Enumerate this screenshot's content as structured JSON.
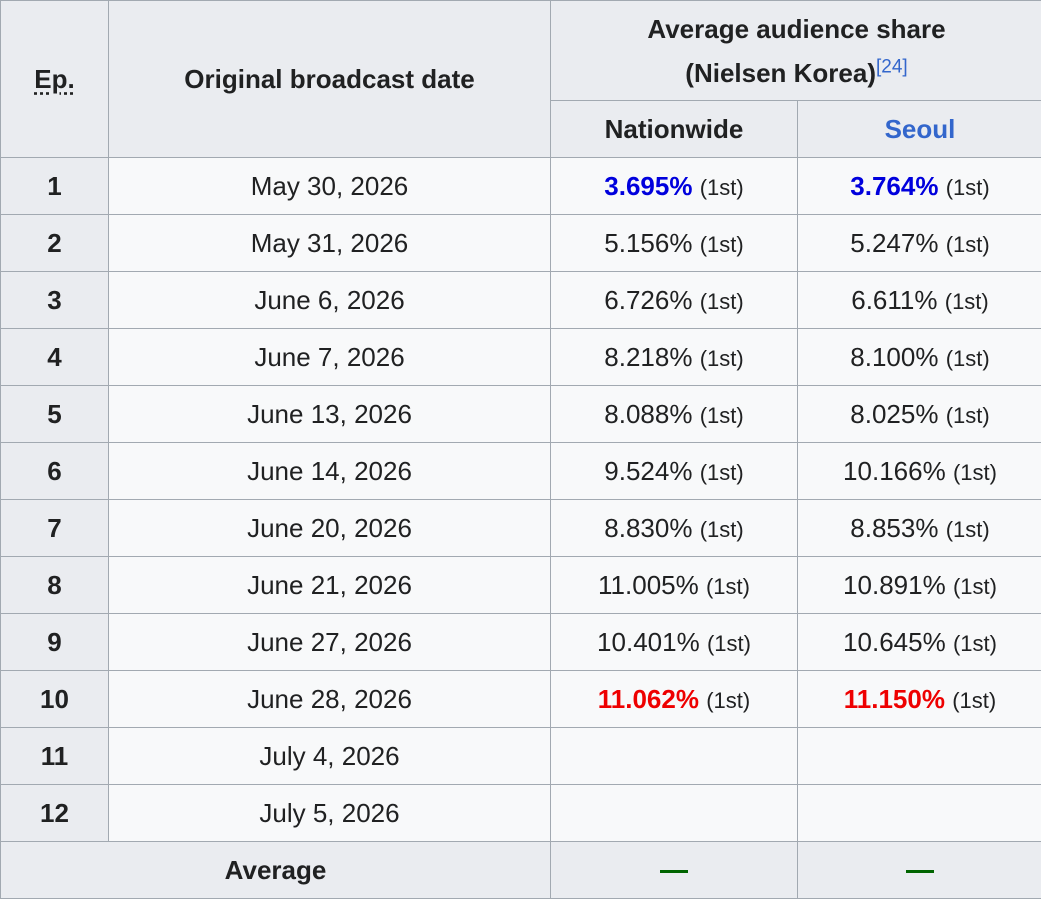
{
  "header": {
    "ep_label": "Ep.",
    "date_label": "Original broadcast date",
    "share_label_line1": "Average audience share",
    "share_label_line2": "(Nielsen Korea)",
    "share_ref": "[24]",
    "nationwide_label": "Nationwide",
    "seoul_label": "Seoul"
  },
  "rows": [
    {
      "ep": "1",
      "date": "May 30, 2026",
      "nationwide": "3.695%",
      "nationwide_rank": "(1st)",
      "seoul": "3.764%",
      "seoul_rank": "(1st)"
    },
    {
      "ep": "2",
      "date": "May 31, 2026",
      "nationwide": "5.156%",
      "nationwide_rank": "(1st)",
      "seoul": "5.247%",
      "seoul_rank": "(1st)"
    },
    {
      "ep": "3",
      "date": "June 6, 2026",
      "nationwide": "6.726%",
      "nationwide_rank": "(1st)",
      "seoul": "6.611%",
      "seoul_rank": "(1st)"
    },
    {
      "ep": "4",
      "date": "June 7, 2026",
      "nationwide": "8.218%",
      "nationwide_rank": "(1st)",
      "seoul": "8.100%",
      "seoul_rank": "(1st)"
    },
    {
      "ep": "5",
      "date": "June 13, 2026",
      "nationwide": "8.088%",
      "nationwide_rank": "(1st)",
      "seoul": "8.025%",
      "seoul_rank": "(1st)"
    },
    {
      "ep": "6",
      "date": "June 14, 2026",
      "nationwide": "9.524%",
      "nationwide_rank": "(1st)",
      "seoul": "10.166%",
      "seoul_rank": "(1st)"
    },
    {
      "ep": "7",
      "date": "June 20, 2026",
      "nationwide": "8.830%",
      "nationwide_rank": "(1st)",
      "seoul": "8.853%",
      "seoul_rank": "(1st)"
    },
    {
      "ep": "8",
      "date": "June 21, 2026",
      "nationwide": "11.005%",
      "nationwide_rank": "(1st)",
      "seoul": "10.891%",
      "seoul_rank": "(1st)"
    },
    {
      "ep": "9",
      "date": "June 27, 2026",
      "nationwide": "10.401%",
      "nationwide_rank": "(1st)",
      "seoul": "10.645%",
      "seoul_rank": "(1st)"
    },
    {
      "ep": "10",
      "date": "June 28, 2026",
      "nationwide": "11.062%",
      "nationwide_rank": "(1st)",
      "seoul": "11.150%",
      "seoul_rank": "(1st)"
    },
    {
      "ep": "11",
      "date": "July 4, 2026",
      "nationwide": "",
      "nationwide_rank": "",
      "seoul": "",
      "seoul_rank": ""
    },
    {
      "ep": "12",
      "date": "July 5, 2026",
      "nationwide": "",
      "nationwide_rank": "",
      "seoul": "",
      "seoul_rank": ""
    }
  ],
  "footer": {
    "average_label": "Average",
    "nationwide_avg": "—",
    "seoul_avg": "—"
  },
  "colors": {
    "lowest": "#0000dd",
    "highest": "#ee0000",
    "link": "#3366cc",
    "dash": "#006400"
  }
}
